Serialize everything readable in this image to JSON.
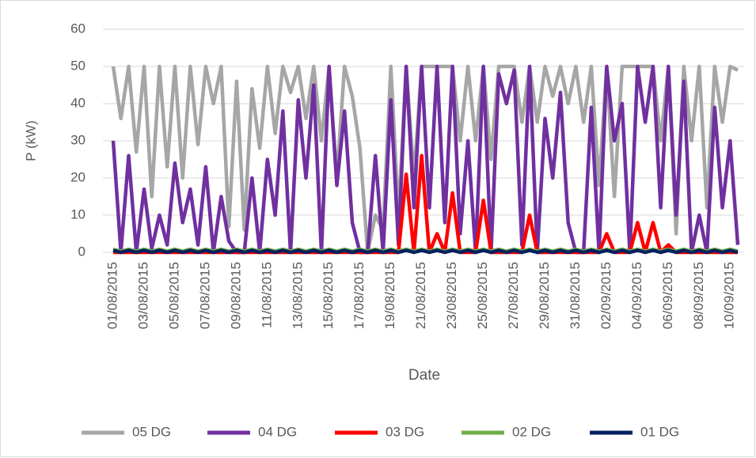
{
  "chart_data": {
    "type": "line",
    "xlabel": "Date",
    "ylabel": "P (kW)",
    "categories": [
      "01/08/2015",
      null,
      null,
      null,
      "03/08/2015",
      null,
      null,
      null,
      "05/08/2015",
      null,
      null,
      null,
      "07/08/2015",
      null,
      null,
      null,
      "09/08/2015",
      null,
      null,
      null,
      "11/08/2015",
      null,
      null,
      null,
      "13/08/2015",
      null,
      null,
      null,
      "15/08/2015",
      null,
      null,
      null,
      "17/08/2015",
      null,
      null,
      null,
      "19/08/2015",
      null,
      null,
      null,
      "21/08/2015",
      null,
      null,
      null,
      "23/08/2015",
      null,
      null,
      null,
      "25/08/2015",
      null,
      null,
      null,
      "27/08/2015",
      null,
      null,
      null,
      "29/08/2015",
      null,
      null,
      null,
      "31/08/2015",
      null,
      null,
      null,
      "02/09/2015",
      null,
      null,
      null,
      "04/09/2015",
      null,
      null,
      null,
      "06/09/2015",
      null,
      null,
      null,
      "08/09/2015",
      null,
      null,
      null,
      "10/09/2015",
      null
    ],
    "series": [
      {
        "name": "05 DG",
        "color": "#a6a6a6",
        "values": [
          50,
          36,
          50,
          27,
          50,
          15,
          50,
          23,
          50,
          20,
          50,
          29,
          50,
          40,
          50,
          7,
          46,
          6,
          44,
          28,
          50,
          32,
          50,
          43,
          50,
          36,
          50,
          30,
          50,
          20,
          50,
          42,
          28,
          0,
          10,
          6,
          50,
          10,
          50,
          20,
          50,
          50,
          50,
          50,
          50,
          30,
          50,
          30,
          50,
          25,
          50,
          50,
          50,
          35,
          50,
          35,
          50,
          42,
          50,
          40,
          50,
          35,
          50,
          18,
          50,
          15,
          50,
          50,
          50,
          50,
          50,
          30,
          50,
          5,
          50,
          30,
          50,
          12,
          50,
          35,
          50,
          49
        ]
      },
      {
        "name": "04 DG",
        "color": "#7030a0",
        "values": [
          30,
          0,
          26,
          0,
          17,
          1,
          10,
          2,
          24,
          8,
          17,
          2,
          23,
          0,
          15,
          3,
          0,
          0,
          20,
          0,
          25,
          10,
          38,
          0,
          41,
          20,
          45,
          0,
          50,
          18,
          38,
          8,
          0,
          0,
          26,
          0,
          41,
          2,
          50,
          12,
          50,
          12,
          50,
          8,
          50,
          5,
          30,
          0,
          50,
          0,
          48,
          40,
          49,
          2,
          50,
          0,
          36,
          20,
          43,
          8,
          0,
          0,
          39,
          0,
          50,
          30,
          40,
          0,
          50,
          35,
          50,
          12,
          50,
          10,
          46,
          0,
          10,
          0,
          39,
          12,
          30,
          2
        ]
      },
      {
        "name": "03 DG",
        "color": "#ff0000",
        "values": [
          0,
          0,
          0,
          0,
          0,
          0,
          0,
          0,
          0,
          0,
          0,
          0,
          0,
          0,
          0,
          0,
          0,
          0,
          0,
          0,
          0,
          0,
          0,
          0,
          0,
          0,
          0,
          0,
          0,
          0,
          0,
          0,
          0,
          0,
          0,
          0,
          0,
          0,
          21,
          0,
          26,
          0,
          5,
          0,
          16,
          0,
          0,
          0,
          14,
          0,
          0,
          0,
          0,
          0,
          10,
          0,
          0,
          0,
          0,
          0,
          0,
          0,
          0,
          0,
          5,
          0,
          0,
          0,
          8,
          0,
          8,
          0,
          2,
          0,
          0,
          0,
          0,
          0,
          0,
          0,
          0,
          0
        ]
      },
      {
        "name": "02 DG",
        "color": "#70ad47",
        "values": [
          0.8,
          0.3,
          0.8,
          0.3,
          0.8,
          0.3,
          0.8,
          0.3,
          0.8,
          0.3,
          0.8,
          0.3,
          0.8,
          0.3,
          0.8,
          0.3,
          0.8,
          0.3,
          0.8,
          0.3,
          0.8,
          0.3,
          0.8,
          0.3,
          0.8,
          0.3,
          0.8,
          0.3,
          0.8,
          0.3,
          0.8,
          0.3,
          0.8,
          0.3,
          0.8,
          0.3,
          0.8,
          0.3,
          0.8,
          0.3,
          0.8,
          0.3,
          0.8,
          0.3,
          0.8,
          0.3,
          0.8,
          0.3,
          0.8,
          0.3,
          0.8,
          0.3,
          0.8,
          0.3,
          0.8,
          0.3,
          0.8,
          0.3,
          0.8,
          0.3,
          0.8,
          0.3,
          0.8,
          0.3,
          0.8,
          0.3,
          0.8,
          0.3,
          0.8,
          0.3,
          0.8,
          0.3,
          0.8,
          0.3,
          0.8,
          0.3,
          0.8,
          0.3,
          0.8,
          0.3,
          0.8,
          0.3
        ]
      },
      {
        "name": "01 DG",
        "color": "#002060",
        "values": [
          0.5,
          0,
          0.5,
          0,
          0.5,
          0,
          0.5,
          0,
          0.5,
          0,
          0.5,
          0,
          0.5,
          0,
          0.5,
          0,
          0.5,
          0,
          0.5,
          0,
          0.5,
          0,
          0.5,
          0,
          0.5,
          0,
          0.5,
          0,
          0.5,
          0,
          0.5,
          0,
          0.5,
          0,
          0.5,
          0,
          0.5,
          0,
          0.5,
          0,
          0.5,
          0,
          0.5,
          0,
          0.5,
          0,
          0.5,
          0,
          0.5,
          0,
          0.5,
          0,
          0.5,
          0,
          0.5,
          0,
          0.5,
          0,
          0.5,
          0,
          0.5,
          0,
          0.5,
          0,
          0.5,
          0,
          0.5,
          0,
          0.5,
          0,
          0.5,
          0,
          0.5,
          0,
          0.5,
          0,
          0.5,
          0,
          0.5,
          0,
          0.5,
          0
        ]
      }
    ],
    "ylim": [
      0,
      60
    ],
    "yticks": [
      0,
      10,
      20,
      30,
      40,
      50,
      60
    ],
    "grid": true,
    "legend": "bottom"
  }
}
